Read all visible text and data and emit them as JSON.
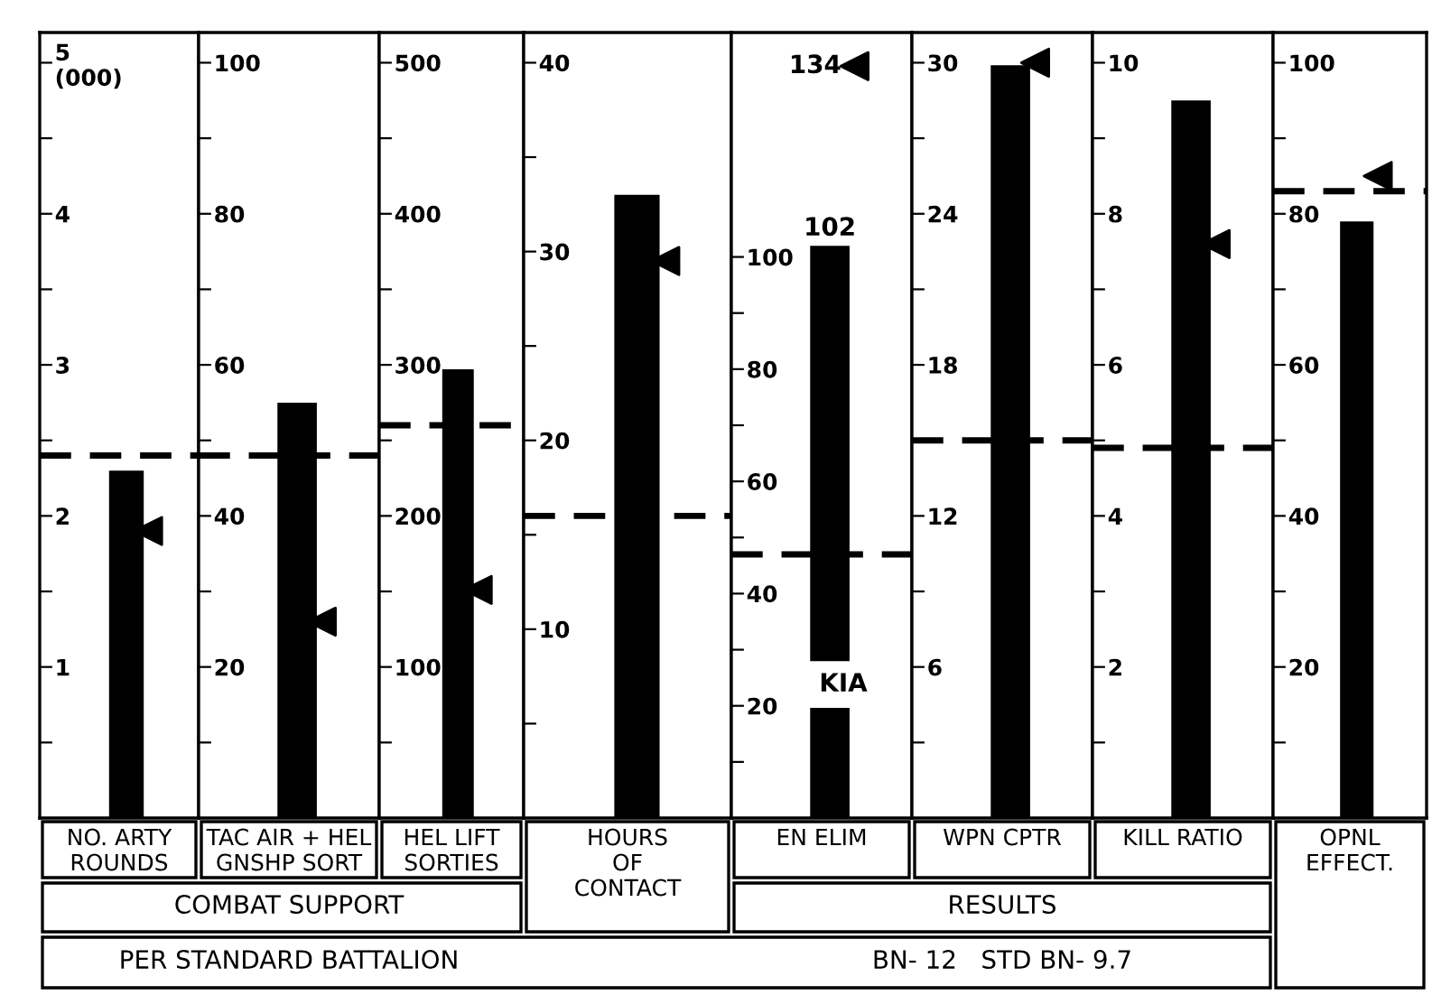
{
  "chart_data": [
    {
      "type": "bar",
      "categories": [
        "NO. ARTY\nROUNDS"
      ],
      "ylim": [
        0,
        5.2
      ],
      "yticks": [
        {
          "value": 0.5,
          "label": null
        },
        1,
        {
          "value": 1.5,
          "label": null
        },
        2,
        {
          "value": 2.5,
          "label": null
        },
        3,
        {
          "value": 3.5,
          "label": null
        },
        4,
        {
          "value": 4.5,
          "label": null
        },
        {
          "value": 5,
          "label": "5\n(000)"
        }
      ],
      "series": [
        {
          "type": "bar",
          "color": "#000000",
          "values": [
            2.3
          ]
        },
        {
          "type": "scatter",
          "marker": "triangle",
          "color": "#000000",
          "x": [
            "NO. ARTY\nROUNDS"
          ],
          "values": [
            1.9
          ]
        }
      ],
      "ref_lines": [
        {
          "axis": "y",
          "value": 2.4,
          "line_style": "dashed"
        }
      ]
    },
    {
      "type": "bar",
      "categories": [
        "TAC AIR + HEL\nGNSHP SORT"
      ],
      "ylim": [
        0,
        104
      ],
      "yticks": [
        {
          "value": 10,
          "label": null
        },
        20,
        {
          "value": 30,
          "label": null
        },
        40,
        {
          "value": 50,
          "label": null
        },
        60,
        {
          "value": 70,
          "label": null
        },
        80,
        {
          "value": 90,
          "label": null
        },
        100
      ],
      "series": [
        {
          "type": "bar",
          "color": "#000000",
          "values": [
            55
          ]
        },
        {
          "type": "scatter",
          "marker": "triangle",
          "color": "#000000",
          "x": [
            "TAC AIR + HEL\nGNSHP SORT"
          ],
          "values": [
            26
          ]
        }
      ],
      "ref_lines": [
        {
          "axis": "y",
          "value": 48,
          "line_style": "dashed"
        }
      ],
      "annotations": [
        "COMBAT SUPPORT",
        "PER STANDARD BATTALION"
      ]
    },
    {
      "type": "bar",
      "categories": [
        "HEL LIFT\nSORTIES"
      ],
      "ylim": [
        0,
        520
      ],
      "yticks": [
        {
          "value": 50,
          "label": null
        },
        100,
        {
          "value": 150,
          "label": null
        },
        200,
        {
          "value": 250,
          "label": null
        },
        300,
        {
          "value": 350,
          "label": null
        },
        400,
        {
          "value": 450,
          "label": null
        },
        500
      ],
      "series": [
        {
          "type": "bar",
          "color": "#000000",
          "values": [
            297
          ]
        },
        {
          "type": "scatter",
          "marker": "triangle",
          "color": "#000000",
          "x": [
            "HEL LIFT\nSORTIES"
          ],
          "values": [
            151
          ]
        }
      ],
      "ref_lines": [
        {
          "axis": "y",
          "value": 260,
          "line_style": "dashed"
        }
      ]
    },
    {
      "type": "bar",
      "categories": [
        "HOURS\nOF\nCONTACT"
      ],
      "ylim": [
        0,
        41.6
      ],
      "yticks": [
        {
          "value": 5,
          "label": null
        },
        10,
        {
          "value": 15,
          "label": null
        },
        20,
        {
          "value": 25,
          "label": null
        },
        30,
        {
          "value": 35,
          "label": null
        },
        40
      ],
      "series": [
        {
          "type": "bar",
          "color": "#000000",
          "values": [
            33
          ]
        },
        {
          "type": "scatter",
          "marker": "triangle",
          "color": "#000000",
          "x": [
            "HOURS\nOF\nCONTACT"
          ],
          "values": [
            29.5
          ]
        }
      ],
      "ref_lines": [
        {
          "axis": "y",
          "value": 16,
          "line_style": "dashed"
        }
      ]
    },
    {
      "type": "bar",
      "categories": [
        "EN ELIM"
      ],
      "ylim": [
        0,
        140
      ],
      "yticks": [
        {
          "value": 10,
          "label": null
        },
        20,
        {
          "value": 30,
          "label": null
        },
        40,
        {
          "value": 50,
          "label": null
        },
        60,
        {
          "value": 70,
          "label": null
        },
        80,
        {
          "value": 90,
          "label": null
        },
        100
      ],
      "series": [
        {
          "type": "bar",
          "color": "#000000",
          "values": [
            102
          ],
          "value_labels": [
            "102"
          ]
        },
        {
          "type": "scatter",
          "marker": "triangle",
          "color": "#000000",
          "x": [
            "EN ELIM"
          ],
          "values": [
            134
          ],
          "value_labels": [
            "134"
          ]
        }
      ],
      "ref_lines": [
        {
          "axis": "y",
          "value": 47,
          "line_style": "dashed"
        }
      ],
      "annotations": [
        "KIA"
      ]
    },
    {
      "type": "bar",
      "categories": [
        "WPN CPTR"
      ],
      "ylim": [
        0,
        31.2
      ],
      "yticks": [
        {
          "value": 3,
          "label": null
        },
        6,
        {
          "value": 9,
          "label": null
        },
        12,
        {
          "value": 15,
          "label": null
        },
        18,
        {
          "value": 21,
          "label": null
        },
        24,
        {
          "value": 27,
          "label": null
        },
        30
      ],
      "series": [
        {
          "type": "bar",
          "color": "#000000",
          "values": [
            29.9
          ]
        },
        {
          "type": "scatter",
          "marker": "triangle",
          "color": "#000000",
          "x": [
            "WPN CPTR"
          ],
          "values": [
            30
          ]
        }
      ],
      "ref_lines": [
        {
          "axis": "y",
          "value": 15,
          "line_style": "dashed"
        }
      ],
      "annotations": [
        "RESULTS",
        "BN- 12   STD BN- 9.7"
      ]
    },
    {
      "type": "bar",
      "categories": [
        "KILL RATIO"
      ],
      "ylim": [
        0,
        10.4
      ],
      "yticks": [
        {
          "value": 1,
          "label": null
        },
        2,
        {
          "value": 3,
          "label": null
        },
        4,
        {
          "value": 5,
          "label": null
        },
        6,
        {
          "value": 7,
          "label": null
        },
        8,
        {
          "value": 9,
          "label": null
        },
        10
      ],
      "series": [
        {
          "type": "bar",
          "color": "#000000",
          "values": [
            9.5
          ]
        },
        {
          "type": "scatter",
          "marker": "triangle",
          "color": "#000000",
          "x": [
            "KILL RATIO"
          ],
          "values": [
            7.6
          ]
        }
      ],
      "ref_lines": [
        {
          "axis": "y",
          "value": 4.9,
          "line_style": "dashed"
        }
      ]
    },
    {
      "type": "bar",
      "categories": [
        "OPNL\nEFFECT."
      ],
      "ylim": [
        0,
        104
      ],
      "yticks": [
        {
          "value": 10,
          "label": null
        },
        20,
        {
          "value": 30,
          "label": null
        },
        40,
        {
          "value": 50,
          "label": null
        },
        60,
        {
          "value": 70,
          "label": null
        },
        80,
        {
          "value": 90,
          "label": null
        },
        100
      ],
      "series": [
        {
          "type": "bar",
          "color": "#000000",
          "values": [
            79
          ]
        },
        {
          "type": "scatter",
          "marker": "triangle",
          "color": "#000000",
          "x": [
            "OPNL\nEFFECT."
          ],
          "values": [
            85
          ]
        }
      ],
      "ref_lines": [
        {
          "axis": "y",
          "value": 83,
          "line_style": "dashed"
        }
      ]
    }
  ]
}
